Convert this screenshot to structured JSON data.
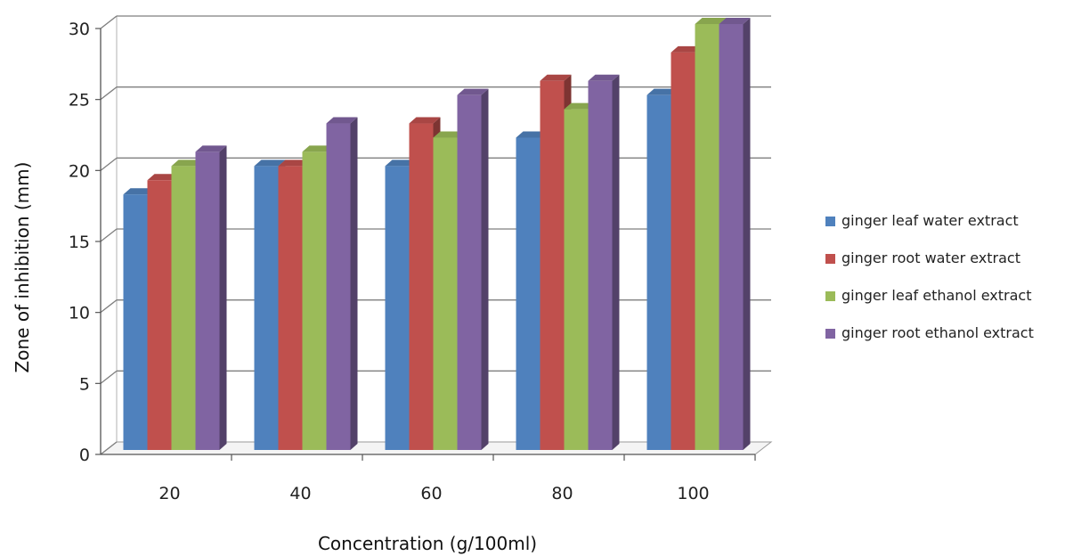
{
  "chart_data": {
    "type": "bar",
    "style": "3d-clustered-column",
    "title": "",
    "xlabel": "Concentration (g/100ml)",
    "ylabel": "Zone of inhibition (mm)",
    "categories": [
      "20",
      "40",
      "60",
      "80",
      "100"
    ],
    "ylim": [
      0,
      30
    ],
    "yticks": [
      0,
      5,
      10,
      15,
      20,
      25,
      30
    ],
    "grid": true,
    "legend_position": "right",
    "series": [
      {
        "name": "ginger leaf water extract",
        "color": "#4F81BD",
        "values": [
          18,
          20,
          20,
          22,
          25
        ]
      },
      {
        "name": "ginger root water extract",
        "color": "#C0504D",
        "values": [
          19,
          20,
          23,
          26,
          28
        ]
      },
      {
        "name": "ginger leaf ethanol extract",
        "color": "#9BBB59",
        "values": [
          20,
          21,
          22,
          24,
          30
        ]
      },
      {
        "name": "ginger root ethanol extract",
        "color": "#8064A2",
        "values": [
          21,
          23,
          25,
          26,
          30
        ]
      }
    ]
  }
}
